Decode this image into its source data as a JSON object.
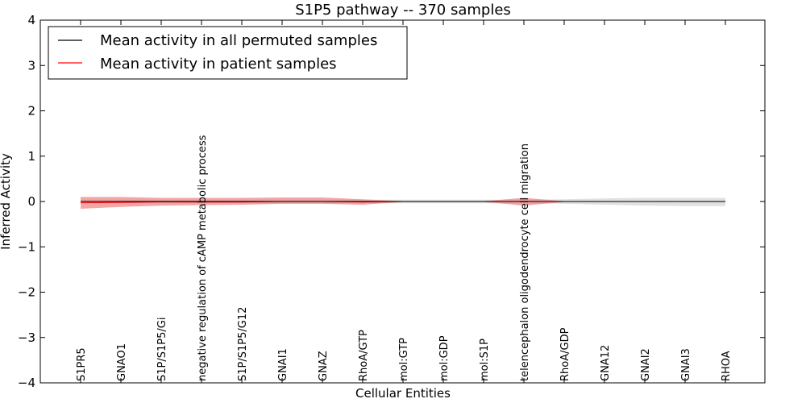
{
  "chart_data": {
    "type": "line",
    "title": "S1P5 pathway -- 370 samples",
    "xlabel": "Cellular Entities",
    "ylabel": "Inferred Activity",
    "ylim": [
      -4,
      4
    ],
    "yticks": [
      {
        "value": 4,
        "label": "4"
      },
      {
        "value": 3,
        "label": "3"
      },
      {
        "value": 2,
        "label": "2"
      },
      {
        "value": 1,
        "label": "1"
      },
      {
        "value": 0,
        "label": "0"
      },
      {
        "value": -1,
        "label": "−1"
      },
      {
        "value": -2,
        "label": "−2"
      },
      {
        "value": -3,
        "label": "−3"
      },
      {
        "value": -4,
        "label": "−4"
      }
    ],
    "categories": [
      "S1PR5",
      "GNAO1",
      "S1P/S1P5/Gi",
      "negative regulation of cAMP metabolic process",
      "S1P/S1P5/G12",
      "GNAI1",
      "GNAZ",
      "RhoA/GTP",
      "mol:GTP",
      "mol:GDP",
      "mol:S1P",
      "telencephalon oligodendrocyte cell migration",
      "RhoA/GDP",
      "GNA12",
      "GNAI2",
      "GNAI3",
      "RHOA"
    ],
    "series": [
      {
        "name": "Mean activity in all permuted samples",
        "color": "#000000",
        "values": [
          0,
          0,
          0,
          0,
          0,
          0,
          0,
          0,
          0,
          0,
          0,
          0,
          0,
          0,
          0,
          0,
          0
        ],
        "band_upper": [
          0.04,
          0.04,
          0.04,
          0.04,
          0.04,
          0.04,
          0.04,
          0.04,
          0.04,
          0.04,
          0.04,
          0.04,
          0.05,
          0.07,
          0.08,
          0.08,
          0.08
        ],
        "band_lower": [
          -0.04,
          -0.04,
          -0.04,
          -0.04,
          -0.04,
          -0.04,
          -0.04,
          -0.04,
          -0.04,
          -0.04,
          -0.04,
          -0.04,
          -0.05,
          -0.07,
          -0.09,
          -0.1,
          -0.1
        ],
        "band_color": "#c8c8c8"
      },
      {
        "name": "Mean activity in patient samples",
        "color": "#ff0000",
        "values": [
          -0.03,
          -0.02,
          -0.01,
          -0.01,
          -0.01,
          0.0,
          0.0,
          -0.01,
          0.0,
          0.0,
          0.0,
          0.0,
          0.0,
          0.0,
          0.0,
          0.0,
          0.0
        ],
        "band_upper": [
          0.1,
          0.1,
          0.08,
          0.08,
          0.08,
          0.09,
          0.09,
          0.05,
          0.01,
          0.01,
          0.01,
          0.08,
          0.01,
          0.01,
          0.01,
          0.01,
          0.01
        ],
        "band_lower": [
          -0.16,
          -0.12,
          -0.09,
          -0.08,
          -0.07,
          -0.05,
          -0.05,
          -0.07,
          -0.01,
          -0.01,
          -0.01,
          -0.09,
          -0.01,
          -0.01,
          -0.01,
          -0.01,
          -0.01
        ],
        "band_color": "#f08080"
      }
    ],
    "legend_position": "top-left",
    "grid": false
  }
}
